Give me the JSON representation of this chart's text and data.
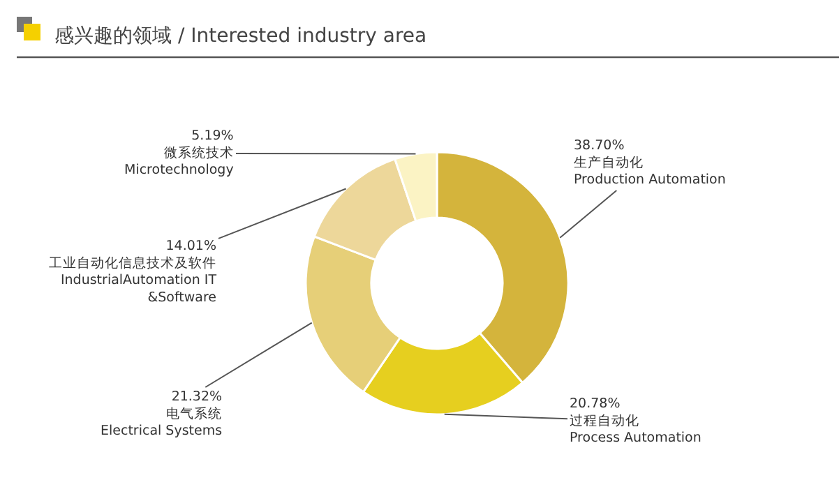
{
  "chart_data": {
    "type": "donut",
    "title": "感兴趣的领域 / Interested industry area",
    "categories": [
      "生产自动化\nProduction Automation",
      "过程自动化\nProcess Automation",
      "电气系统\nElectrical Systems",
      "工业自动化信息技术及软件\nIndustrialAutomation IT\n&Software",
      "微系统技术\nMicrotechnology"
    ],
    "values": [
      38.7,
      20.78,
      21.32,
      14.01,
      5.19
    ],
    "colors": [
      "#d4b43c",
      "#e6cf1f",
      "#e6cf78",
      "#edd79a",
      "#fbf3c4"
    ],
    "value_labels": [
      "38.70%",
      "20.78%",
      "21.32%",
      "14.01%",
      "5.19%"
    ],
    "legend": false
  }
}
